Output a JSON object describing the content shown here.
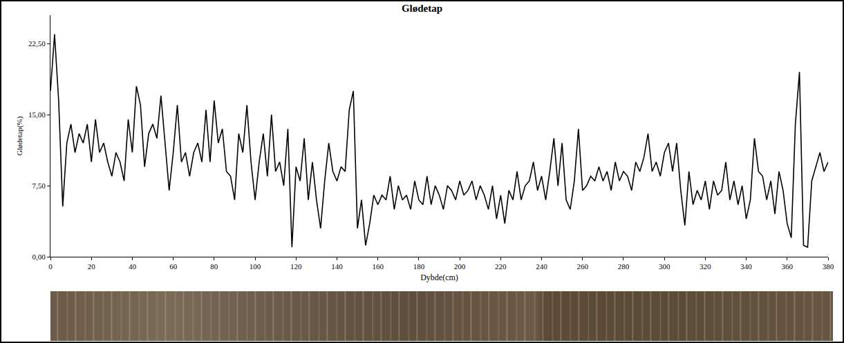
{
  "chart_data": {
    "type": "line",
    "title": "Glødetap",
    "x_label": "Dybde(cm)",
    "y_label": "Glødetap(%)",
    "x": [
      0,
      2,
      4,
      6,
      8,
      10,
      12,
      14,
      16,
      18,
      20,
      22,
      24,
      26,
      28,
      30,
      32,
      34,
      36,
      38,
      40,
      42,
      44,
      46,
      48,
      50,
      52,
      54,
      56,
      58,
      60,
      62,
      64,
      66,
      68,
      70,
      72,
      74,
      76,
      78,
      80,
      82,
      84,
      86,
      88,
      90,
      92,
      94,
      96,
      98,
      100,
      102,
      104,
      106,
      108,
      110,
      112,
      114,
      116,
      118,
      120,
      122,
      124,
      126,
      128,
      130,
      132,
      134,
      136,
      138,
      140,
      142,
      144,
      146,
      148,
      150,
      152,
      154,
      156,
      158,
      160,
      162,
      164,
      166,
      168,
      170,
      172,
      174,
      176,
      178,
      180,
      182,
      184,
      186,
      188,
      190,
      192,
      194,
      196,
      198,
      200,
      202,
      204,
      206,
      208,
      210,
      212,
      214,
      216,
      218,
      220,
      222,
      224,
      226,
      228,
      230,
      232,
      234,
      236,
      238,
      240,
      242,
      244,
      246,
      248,
      250,
      252,
      254,
      256,
      258,
      260,
      262,
      264,
      266,
      268,
      270,
      272,
      274,
      276,
      278,
      280,
      282,
      284,
      286,
      288,
      290,
      292,
      294,
      296,
      298,
      300,
      302,
      304,
      306,
      308,
      310,
      312,
      314,
      316,
      318,
      320,
      322,
      324,
      326,
      328,
      330,
      332,
      334,
      336,
      338,
      340,
      342,
      344,
      346,
      348,
      350,
      352,
      354,
      356,
      358,
      360,
      362,
      364,
      366,
      368,
      370,
      372,
      374,
      376,
      378,
      380
    ],
    "values": [
      17.5,
      23.5,
      16.5,
      5.3,
      12,
      14,
      11,
      13,
      12,
      14,
      10,
      14.5,
      11,
      12,
      10,
      8.5,
      11,
      10,
      8,
      14.5,
      11,
      18,
      16,
      9.5,
      13,
      14,
      12.5,
      17,
      12,
      7,
      11,
      16,
      10,
      11,
      8.5,
      11,
      12,
      10,
      15.5,
      10,
      16.5,
      12,
      13.5,
      9,
      8.5,
      6,
      13,
      11,
      16,
      10,
      6,
      10,
      13,
      8.5,
      15,
      9,
      10,
      7.5,
      13.5,
      1,
      9.5,
      8,
      12.5,
      6,
      10,
      6,
      3,
      8,
      12,
      9,
      8,
      9.5,
      9,
      15.5,
      17.5,
      3,
      6,
      1.2,
      3.5,
      6.5,
      5.5,
      6.5,
      6,
      8.5,
      5,
      7.5,
      6,
      6.5,
      5,
      8,
      6,
      5.5,
      8.5,
      5.5,
      7.5,
      6.5,
      5,
      7.5,
      7,
      6,
      8,
      6.5,
      7,
      8,
      6,
      7.5,
      6.5,
      5,
      7.5,
      4,
      6.5,
      3.5,
      7,
      6,
      9,
      6,
      7.5,
      8,
      10,
      7,
      8.5,
      6,
      9,
      12.5,
      7.5,
      12,
      6,
      5,
      8,
      13.5,
      7,
      7.5,
      8.5,
      8,
      9.5,
      8,
      9,
      7,
      10,
      8,
      9,
      8.5,
      7,
      10,
      9,
      10.5,
      13,
      9,
      10,
      8.5,
      11,
      12,
      9,
      12,
      7,
      3.3,
      9,
      5.5,
      7,
      6,
      8,
      5,
      8,
      6.5,
      7,
      10,
      6,
      8,
      5.5,
      7.5,
      4,
      6,
      12.5,
      9,
      8.5,
      6,
      8,
      4.5,
      9,
      7,
      3.5,
      2,
      14,
      19.5,
      1.2,
      1,
      8,
      9.5,
      11,
      9,
      10
    ],
    "color": "#000000",
    "line_style": "solid",
    "xlim": [
      0,
      380
    ],
    "xticks": [
      0,
      20,
      40,
      60,
      80,
      100,
      120,
      140,
      160,
      180,
      200,
      220,
      240,
      260,
      280,
      300,
      320,
      340,
      360,
      380
    ],
    "ylim": [
      0,
      25.5
    ],
    "yticks": [
      {
        "value": 0,
        "label": "0,00"
      },
      {
        "value": 7.5,
        "label": "7,50"
      },
      {
        "value": 15,
        "label": "15,00"
      },
      {
        "value": 22.5,
        "label": "22,50"
      }
    ],
    "grid": false
  }
}
